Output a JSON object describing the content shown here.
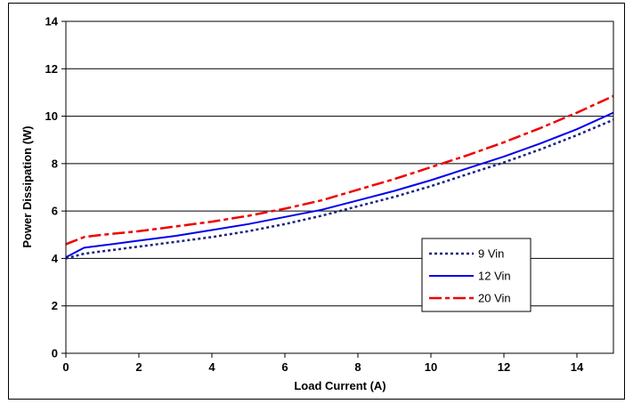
{
  "chart_data": {
    "type": "line",
    "title": "",
    "xlabel": "Load Current (A)",
    "ylabel": "Power Dissipation (W)",
    "xlim": [
      0,
      15
    ],
    "ylim": [
      0,
      14
    ],
    "x_ticks": [
      0,
      2,
      4,
      6,
      8,
      10,
      12,
      14
    ],
    "y_ticks": [
      0,
      2,
      4,
      6,
      8,
      10,
      12,
      14
    ],
    "grid": "horizontal",
    "legend_position": "lower-right",
    "series": [
      {
        "name": "9 Vin",
        "color": "#1a237e",
        "dash": "dotted",
        "x": [
          0,
          0.5,
          1,
          2,
          3,
          4,
          5,
          6,
          7,
          8,
          9,
          10,
          11,
          12,
          13,
          14,
          15
        ],
        "y": [
          4.0,
          4.2,
          4.3,
          4.5,
          4.7,
          4.9,
          5.15,
          5.45,
          5.8,
          6.2,
          6.6,
          7.05,
          7.55,
          8.05,
          8.6,
          9.2,
          9.85
        ]
      },
      {
        "name": "12 Vin",
        "color": "#0000ee",
        "dash": "solid",
        "x": [
          0,
          0.5,
          1,
          2,
          3,
          4,
          5,
          6,
          7,
          8,
          9,
          10,
          11,
          12,
          13,
          14,
          15
        ],
        "y": [
          4.05,
          4.45,
          4.55,
          4.75,
          4.95,
          5.2,
          5.45,
          5.75,
          6.05,
          6.45,
          6.85,
          7.3,
          7.8,
          8.3,
          8.85,
          9.45,
          10.15
        ]
      },
      {
        "name": "20 Vin",
        "color": "#ee0000",
        "dash": "dash-dot",
        "x": [
          0,
          0.5,
          1,
          2,
          3,
          4,
          5,
          6,
          7,
          8,
          9,
          10,
          11,
          12,
          13,
          14,
          15
        ],
        "y": [
          4.6,
          4.9,
          5.0,
          5.15,
          5.35,
          5.55,
          5.8,
          6.1,
          6.45,
          6.9,
          7.35,
          7.85,
          8.35,
          8.9,
          9.5,
          10.15,
          10.85
        ]
      }
    ]
  }
}
